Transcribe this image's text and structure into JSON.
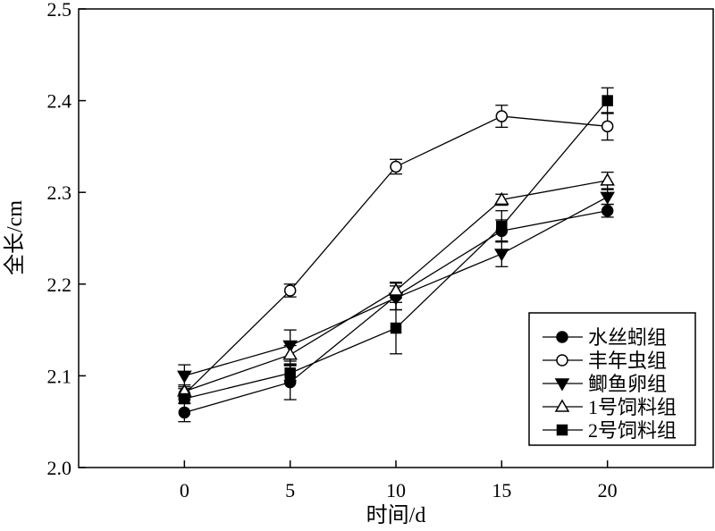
{
  "chart_data": {
    "type": "line",
    "title": "",
    "xlabel": "时间/d",
    "ylabel": "全长/cm",
    "x": [
      0,
      5,
      10,
      15,
      20
    ],
    "x_ticks": [
      "0",
      "5",
      "10",
      "15",
      "20"
    ],
    "xlim": [
      -5,
      25
    ],
    "ylim": [
      2.0,
      2.5
    ],
    "y_ticks": [
      "2.0",
      "2.1",
      "2.2",
      "2.3",
      "2.4",
      "2.5"
    ],
    "grid": false,
    "legend_position": "bottom-right",
    "series": [
      {
        "name": "水丝蚓组",
        "marker": "filled-circle",
        "values": [
          2.06,
          2.093,
          2.187,
          2.258,
          2.28
        ],
        "errors": [
          0.01,
          0.019,
          0.015,
          0.012,
          0.007
        ]
      },
      {
        "name": "丰年虫组",
        "marker": "open-circle",
        "values": [
          2.08,
          2.193,
          2.328,
          2.383,
          2.372
        ],
        "errors": [
          0.006,
          0.007,
          0.008,
          0.012,
          0.015
        ]
      },
      {
        "name": "鲫鱼卵组",
        "marker": "filled-triangle-down",
        "values": [
          2.1,
          2.133,
          2.185,
          2.233,
          2.295
        ],
        "errors": [
          0.012,
          0.017,
          0.013,
          0.014,
          0.008
        ]
      },
      {
        "name": "1号饲料组",
        "marker": "open-triangle-up",
        "values": [
          2.083,
          2.123,
          2.193,
          2.292,
          2.313
        ],
        "errors": [
          0.007,
          0.01,
          0.008,
          0.006,
          0.009
        ]
      },
      {
        "name": "2号饲料组",
        "marker": "filled-square",
        "values": [
          2.075,
          2.103,
          2.152,
          2.263,
          2.4
        ],
        "errors": [
          0.005,
          0.008,
          0.028,
          0.017,
          0.014
        ]
      }
    ]
  }
}
